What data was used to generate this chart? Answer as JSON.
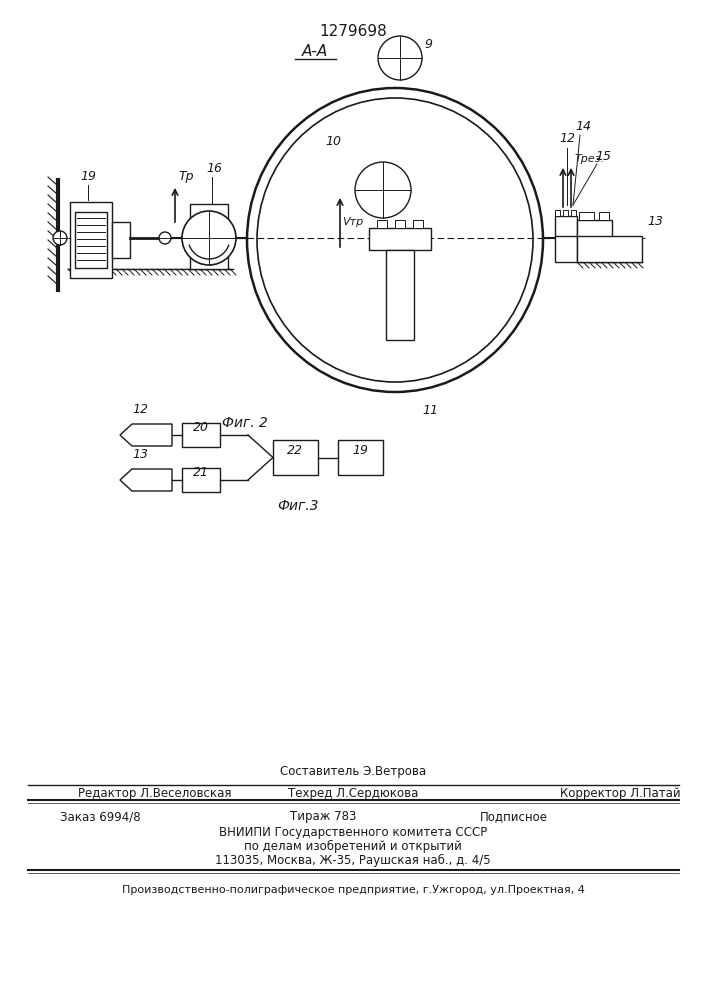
{
  "patent_number": "1279698",
  "section_label": "А-А",
  "fig2_label": "Фиг. 2",
  "fig3_label": "Фиг.3",
  "bg_color": "#ffffff",
  "line_color": "#1a1a1a",
  "footer_line1": "Составитель Э.Ветрова",
  "footer_line2": "Техред Л.Сердюкова",
  "footer_left": "Редактор Л.Веселовская",
  "footer_right": "Корректор Л.Патай",
  "footer_order": "Заказ 6994/8",
  "footer_tirazh": "Тираж 783",
  "footer_podpisnoe": "Подписное",
  "footer_vnipi": "ВНИИПИ Государственного комитета СССР",
  "footer_dela": "по делам изобретений и открытий",
  "footer_addr": "113035, Москва, Ж-35, Раушская наб., д. 4/5",
  "footer_bottom": "Производственно-полиграфическое предприятие, г.Ужгород, ул.Проектная, 4"
}
